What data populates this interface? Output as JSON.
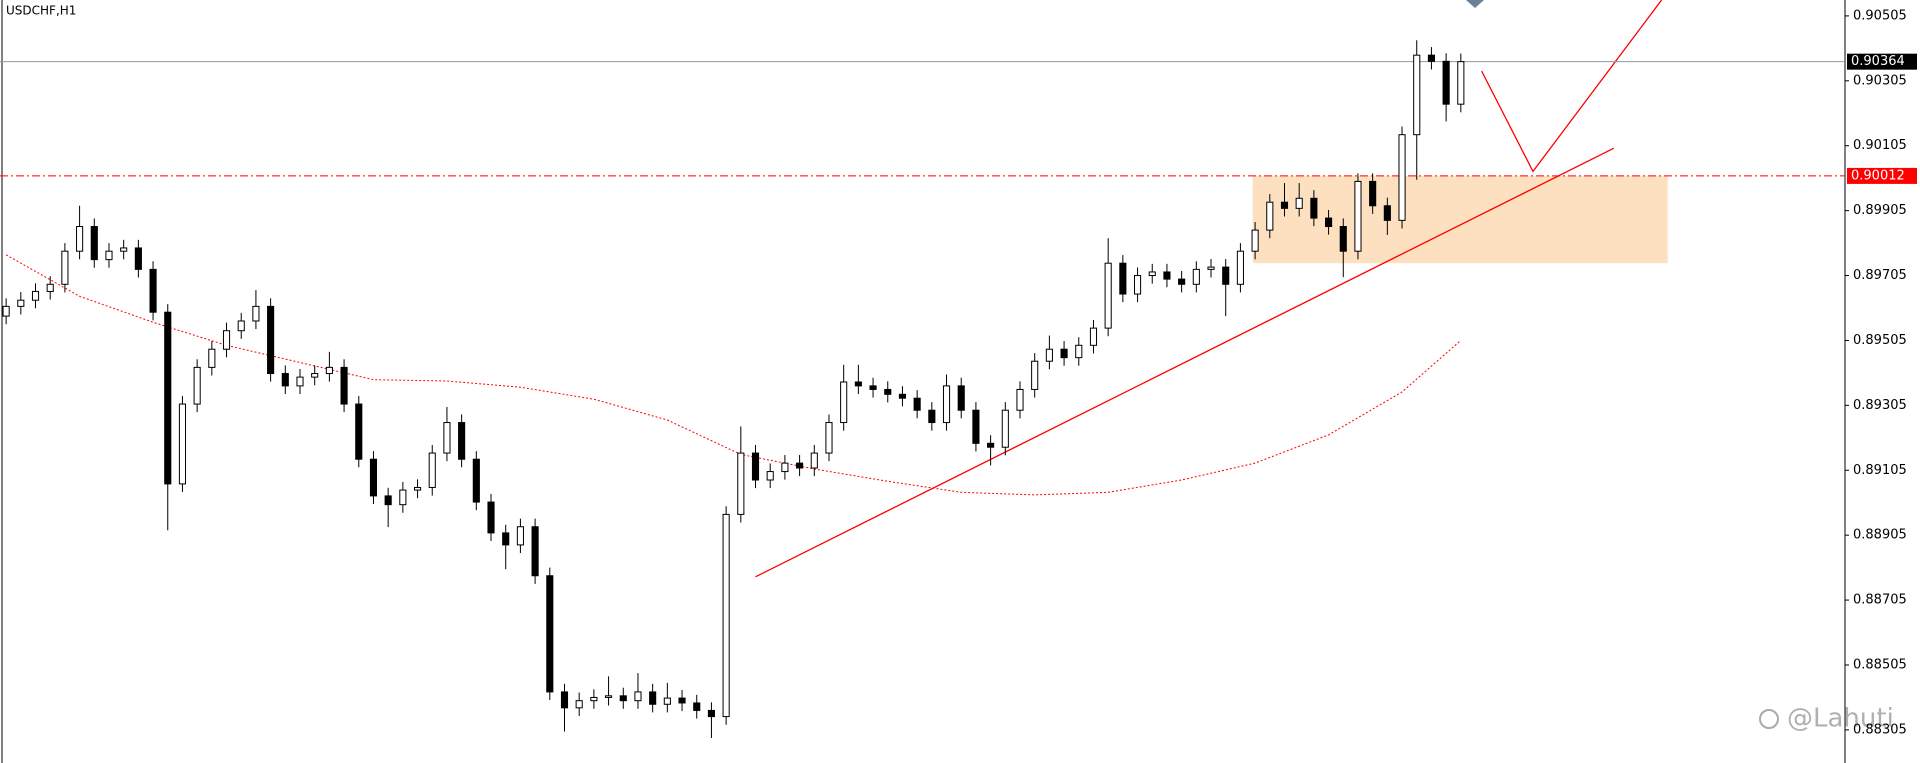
{
  "chart_data": {
    "type": "candlestick",
    "title": "USDCHF,H1",
    "watermark": "@Lahuti",
    "ylim": [
      0.88203,
      0.90554
    ],
    "yticks": [
      0.90505,
      0.90305,
      0.90105,
      0.89905,
      0.89705,
      0.89505,
      0.89305,
      0.89105,
      0.88905,
      0.88705,
      0.88505,
      0.88305
    ],
    "grid": false,
    "current_price": 0.90364,
    "level": 0.90012,
    "candles": [
      [
        0.8958,
        0.89635,
        0.89555,
        0.8961
      ],
      [
        0.8961,
        0.89654,
        0.89585,
        0.89629
      ],
      [
        0.89629,
        0.89681,
        0.89604,
        0.89656
      ],
      [
        0.89656,
        0.89703,
        0.89631,
        0.89678
      ],
      [
        0.89678,
        0.89805,
        0.89653,
        0.8978
      ],
      [
        0.8978,
        0.8992,
        0.89755,
        0.89856
      ],
      [
        0.89856,
        0.89881,
        0.89729,
        0.89754
      ],
      [
        0.89754,
        0.89805,
        0.89729,
        0.8978
      ],
      [
        0.8978,
        0.89815,
        0.89755,
        0.8979
      ],
      [
        0.8979,
        0.89815,
        0.89699,
        0.89724
      ],
      [
        0.89724,
        0.89749,
        0.89567,
        0.89592
      ],
      [
        0.89592,
        0.89617,
        0.8892,
        0.89063
      ],
      [
        0.89063,
        0.89334,
        0.89038,
        0.89309
      ],
      [
        0.89309,
        0.89447,
        0.89284,
        0.89422
      ],
      [
        0.89422,
        0.89503,
        0.89397,
        0.89478
      ],
      [
        0.89478,
        0.8956,
        0.89453,
        0.89535
      ],
      [
        0.89535,
        0.8959,
        0.8951,
        0.89565
      ],
      [
        0.89565,
        0.8966,
        0.8954,
        0.8961
      ],
      [
        0.8961,
        0.89635,
        0.89378,
        0.89403
      ],
      [
        0.89403,
        0.89428,
        0.8934,
        0.89365
      ],
      [
        0.89365,
        0.89417,
        0.8934,
        0.89392
      ],
      [
        0.89392,
        0.89428,
        0.89367,
        0.89403
      ],
      [
        0.89403,
        0.8947,
        0.89378,
        0.89422
      ],
      [
        0.89422,
        0.89447,
        0.89284,
        0.89309
      ],
      [
        0.89309,
        0.89334,
        0.89114,
        0.89139
      ],
      [
        0.89139,
        0.89164,
        0.89001,
        0.89026
      ],
      [
        0.89026,
        0.89051,
        0.8893,
        0.88999
      ],
      [
        0.88999,
        0.89069,
        0.88974,
        0.89044
      ],
      [
        0.89044,
        0.89077,
        0.89019,
        0.89052
      ],
      [
        0.89052,
        0.89183,
        0.89027,
        0.89158
      ],
      [
        0.89158,
        0.893,
        0.89133,
        0.89252
      ],
      [
        0.89252,
        0.89277,
        0.89114,
        0.89139
      ],
      [
        0.89139,
        0.89164,
        0.88982,
        0.89007
      ],
      [
        0.89007,
        0.89032,
        0.88887,
        0.88912
      ],
      [
        0.88912,
        0.88937,
        0.888,
        0.88875
      ],
      [
        0.88875,
        0.88956,
        0.8885,
        0.88931
      ],
      [
        0.88931,
        0.88956,
        0.88755,
        0.8878
      ],
      [
        0.8878,
        0.88805,
        0.88397,
        0.88422
      ],
      [
        0.88422,
        0.88447,
        0.883,
        0.88373
      ],
      [
        0.88373,
        0.8842,
        0.88348,
        0.88395
      ],
      [
        0.88395,
        0.8843,
        0.8837,
        0.88405
      ],
      [
        0.88405,
        0.8847,
        0.8838,
        0.8841
      ],
      [
        0.8841,
        0.88435,
        0.8837,
        0.88395
      ],
      [
        0.88395,
        0.8848,
        0.8837,
        0.88422
      ],
      [
        0.88422,
        0.88447,
        0.88359,
        0.88384
      ],
      [
        0.88384,
        0.8845,
        0.88359,
        0.88403
      ],
      [
        0.88403,
        0.88428,
        0.88363,
        0.88388
      ],
      [
        0.88388,
        0.88413,
        0.8834,
        0.88365
      ],
      [
        0.88365,
        0.8839,
        0.8828,
        0.88346
      ],
      [
        0.88346,
        0.88994,
        0.88321,
        0.88969
      ],
      [
        0.88969,
        0.8924,
        0.88944,
        0.89158
      ],
      [
        0.89158,
        0.89183,
        0.8905,
        0.89075
      ],
      [
        0.89075,
        0.89126,
        0.8905,
        0.89101
      ],
      [
        0.89101,
        0.89152,
        0.89076,
        0.89127
      ],
      [
        0.89127,
        0.89152,
        0.89087,
        0.89112
      ],
      [
        0.89112,
        0.89183,
        0.89087,
        0.89158
      ],
      [
        0.89158,
        0.89277,
        0.89133,
        0.89252
      ],
      [
        0.89252,
        0.8943,
        0.89227,
        0.89377
      ],
      [
        0.89377,
        0.8943,
        0.8934,
        0.89365
      ],
      [
        0.89365,
        0.8939,
        0.89329,
        0.89354
      ],
      [
        0.89354,
        0.89379,
        0.89314,
        0.89339
      ],
      [
        0.89339,
        0.89364,
        0.89302,
        0.89327
      ],
      [
        0.89327,
        0.89352,
        0.89265,
        0.8929
      ],
      [
        0.8929,
        0.89315,
        0.89227,
        0.89252
      ],
      [
        0.89252,
        0.894,
        0.89227,
        0.89365
      ],
      [
        0.89365,
        0.8939,
        0.89265,
        0.8929
      ],
      [
        0.8929,
        0.89315,
        0.89163,
        0.89188
      ],
      [
        0.89188,
        0.89213,
        0.8912,
        0.89176
      ],
      [
        0.89176,
        0.89315,
        0.89151,
        0.8929
      ],
      [
        0.8929,
        0.89379,
        0.89265,
        0.89354
      ],
      [
        0.89354,
        0.89466,
        0.89329,
        0.89441
      ],
      [
        0.89441,
        0.8952,
        0.89416,
        0.89478
      ],
      [
        0.89478,
        0.89503,
        0.89427,
        0.89452
      ],
      [
        0.89452,
        0.89515,
        0.89427,
        0.8949
      ],
      [
        0.8949,
        0.89568,
        0.89465,
        0.89543
      ],
      [
        0.89543,
        0.8982,
        0.89518,
        0.89743
      ],
      [
        0.89743,
        0.89768,
        0.89623,
        0.89648
      ],
      [
        0.89648,
        0.8973,
        0.89623,
        0.89705
      ],
      [
        0.89705,
        0.89741,
        0.8968,
        0.89716
      ],
      [
        0.89716,
        0.89741,
        0.89669,
        0.89694
      ],
      [
        0.89694,
        0.89719,
        0.89653,
        0.89678
      ],
      [
        0.89678,
        0.89749,
        0.89653,
        0.89724
      ],
      [
        0.89724,
        0.89756,
        0.89699,
        0.89731
      ],
      [
        0.89731,
        0.89756,
        0.8958,
        0.89678
      ],
      [
        0.89678,
        0.89805,
        0.89653,
        0.8978
      ],
      [
        0.8978,
        0.8987,
        0.89755,
        0.89845
      ],
      [
        0.89845,
        0.89956,
        0.8982,
        0.89931
      ],
      [
        0.89931,
        0.8999,
        0.89887,
        0.89912
      ],
      [
        0.89912,
        0.8999,
        0.89887,
        0.89943
      ],
      [
        0.89943,
        0.89968,
        0.89857,
        0.89882
      ],
      [
        0.89882,
        0.89907,
        0.89831,
        0.89856
      ],
      [
        0.89856,
        0.89881,
        0.897,
        0.8978
      ],
      [
        0.8978,
        0.9002,
        0.89755,
        0.89995
      ],
      [
        0.89995,
        0.9002,
        0.89895,
        0.8992
      ],
      [
        0.8992,
        0.89945,
        0.8983,
        0.89875
      ],
      [
        0.89875,
        0.90164,
        0.8985,
        0.90139
      ],
      [
        0.90139,
        0.9043,
        0.9,
        0.90384
      ],
      [
        0.90384,
        0.90409,
        0.9034,
        0.90365
      ],
      [
        0.90365,
        0.9039,
        0.9018,
        0.90233
      ],
      [
        0.90233,
        0.90389,
        0.90208,
        0.90364
      ]
    ],
    "ma": {
      "color": "#ff0000",
      "x": [
        0,
        5,
        10,
        15,
        20,
        25,
        30,
        35,
        40,
        45,
        50,
        55,
        60,
        65,
        70,
        75,
        80,
        85,
        90,
        95,
        99
      ],
      "values": [
        0.89769,
        0.89641,
        0.89561,
        0.8949,
        0.89437,
        0.89384,
        0.8938,
        0.89361,
        0.89324,
        0.8926,
        0.89154,
        0.89109,
        0.89071,
        0.89037,
        0.89029,
        0.89037,
        0.89075,
        0.89127,
        0.89214,
        0.89346,
        0.89505
      ]
    }
  }
}
